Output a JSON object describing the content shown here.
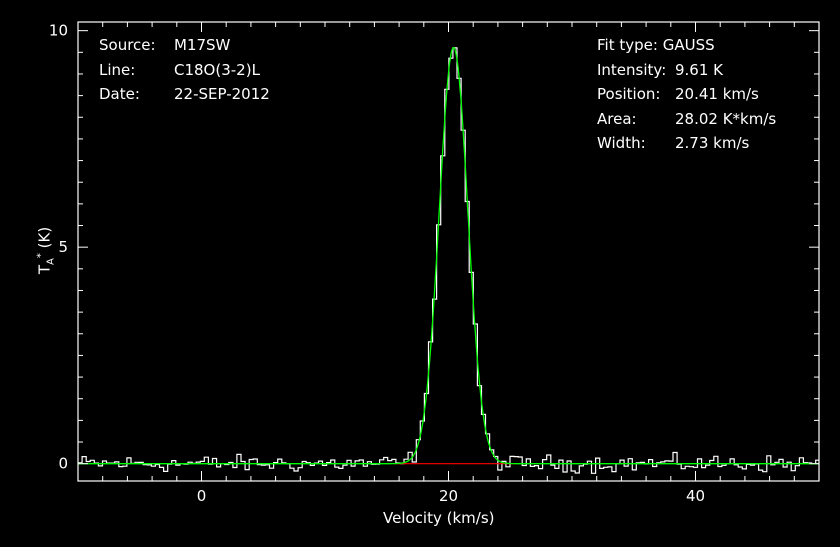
{
  "header_left": {
    "source_key": "Source:",
    "source_val": "M17SW",
    "line_key": "Line:",
    "line_val": "C18O(3-2)L",
    "date_key": "Date:",
    "date_val": "22-SEP-2012"
  },
  "fit": {
    "type_key": "Fit type:",
    "type_val": "GAUSS",
    "intensity_key": "Intensity:",
    "intensity_val": "9.61 K",
    "position_key": "Position:",
    "position_val": "20.41 km/s",
    "area_key": "Area:",
    "area_val": "28.02 K*km/s",
    "width_key": "Width:",
    "width_val": "2.73 km/s"
  },
  "colors": {
    "background": "#000000",
    "axes": "#ffffff",
    "spectrum": "#ffffff",
    "fit": "#00ff00",
    "baseline": "#ff0000"
  },
  "chart_data": {
    "type": "line",
    "xlabel": "Velocity (km/s)",
    "ylabel_main": "T",
    "ylabel_sub": "A",
    "ylabel_sup": "*",
    "ylabel_unit": "(K)",
    "xlim": [
      -10,
      50
    ],
    "ylim": [
      -0.4,
      10.2
    ],
    "x_ticks": [
      0,
      20,
      40
    ],
    "x_tick_labels": [
      "0",
      "20",
      "40"
    ],
    "y_ticks": [
      0,
      5,
      10
    ],
    "y_tick_labels": [
      "0",
      "5",
      "10"
    ],
    "gaussian_fit": {
      "amplitude": 9.61,
      "center": 20.41,
      "fwhm": 2.73
    },
    "baseline_range": [
      15.5,
      25.5
    ],
    "spectrum_noise_rms": 0.12,
    "channel_width": 0.33
  }
}
